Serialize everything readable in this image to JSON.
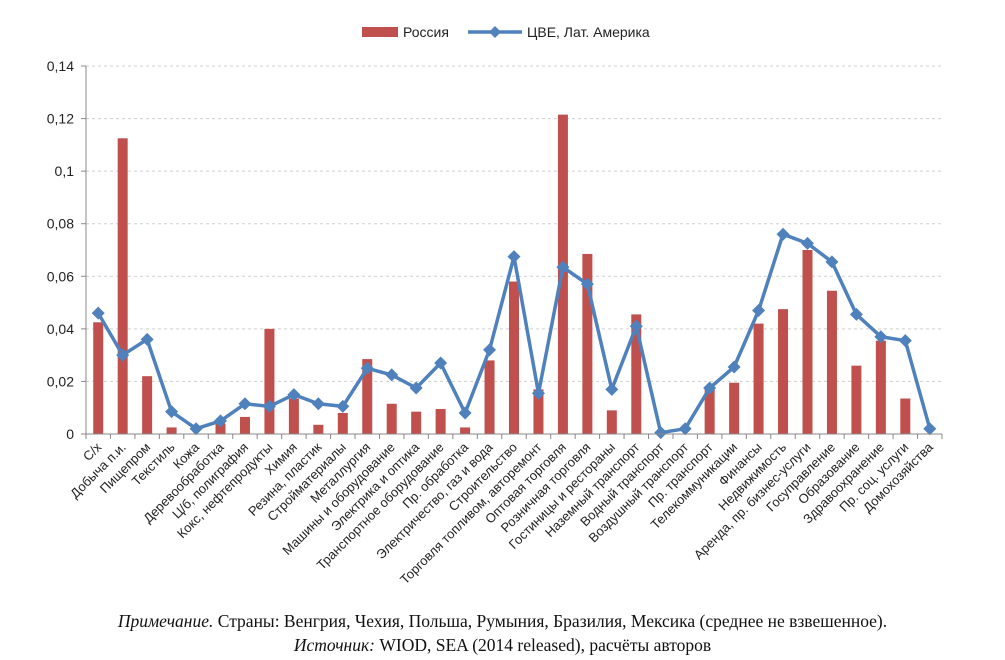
{
  "chart_data": {
    "type": "bar",
    "title": "",
    "xlabel": "",
    "ylabel": "",
    "ylim": [
      0,
      0.14
    ],
    "yticks": [
      "0",
      "0,02",
      "0,04",
      "0,06",
      "0,08",
      "0,1",
      "0,12",
      "0,14"
    ],
    "grid": true,
    "legend_position": "top-center",
    "categories": [
      "С/х",
      "Добыча п.и.",
      "Пищепром",
      "Текстиль",
      "Кожа",
      "Деревообработка",
      "Ц/б, полиграфия",
      "Кокс, нефтепродукты",
      "Химия",
      "Резина, пластик",
      "Стройматериалы",
      "Металлургия",
      "Машины и оборудование",
      "Электрика и оптика",
      "Транспортное оборудование",
      "Пр. обработка",
      "Электричество, газ и вода",
      "Строительство",
      "Торговля топливом, авторемонт",
      "Оптовая торговля",
      "Розничная торговля",
      "Гостиницы и рестораны",
      "Наземный транспорт",
      "Водный транспорт",
      "Воздушный транспорт",
      "Пр. транспорт",
      "Телекоммуникации",
      "Финансы",
      "Недвижимость",
      "Аренда, пр. бизнес-услуги",
      "Госуправление",
      "Образование",
      "Здравоохранение",
      "Пр. соц. услуги",
      "Домохозяйства"
    ],
    "series": [
      {
        "name": "Россия",
        "kind": "bar",
        "color": "#c0504d",
        "values": [
          0.0425,
          0.1125,
          0.022,
          0.0025,
          0.0,
          0.004,
          0.0065,
          0.04,
          0.0135,
          0.0035,
          0.008,
          0.0285,
          0.0115,
          0.0085,
          0.0095,
          0.0025,
          0.028,
          0.058,
          0.017,
          0.1215,
          0.0685,
          0.009,
          0.0455,
          0.0,
          0.0,
          0.0175,
          0.0195,
          0.042,
          0.0475,
          0.07,
          0.0545,
          0.026,
          0.0355,
          0.0135,
          0.0
        ]
      },
      {
        "name": "ЦВЕ, Лат. Америка",
        "kind": "line",
        "color": "#4f81bd",
        "values": [
          0.046,
          0.03,
          0.036,
          0.0085,
          0.002,
          0.005,
          0.0115,
          0.0105,
          0.015,
          0.0115,
          0.0105,
          0.025,
          0.0225,
          0.0175,
          0.027,
          0.008,
          0.032,
          0.0675,
          0.0155,
          0.0635,
          0.057,
          0.017,
          0.041,
          0.0005,
          0.002,
          0.0175,
          0.0255,
          0.047,
          0.076,
          0.0725,
          0.0655,
          0.0455,
          0.037,
          0.0355,
          0.002
        ]
      }
    ]
  },
  "footnote": {
    "note_label": "Примечание.",
    "note_text": " Страны: Венгрия, Чехия, Польша, Румыния, Бразилия, Мексика (среднее не взвешенное).",
    "source_label": "Источник:",
    "source_text": " WIOD, SEA (2014 released), расчёты авторов"
  }
}
